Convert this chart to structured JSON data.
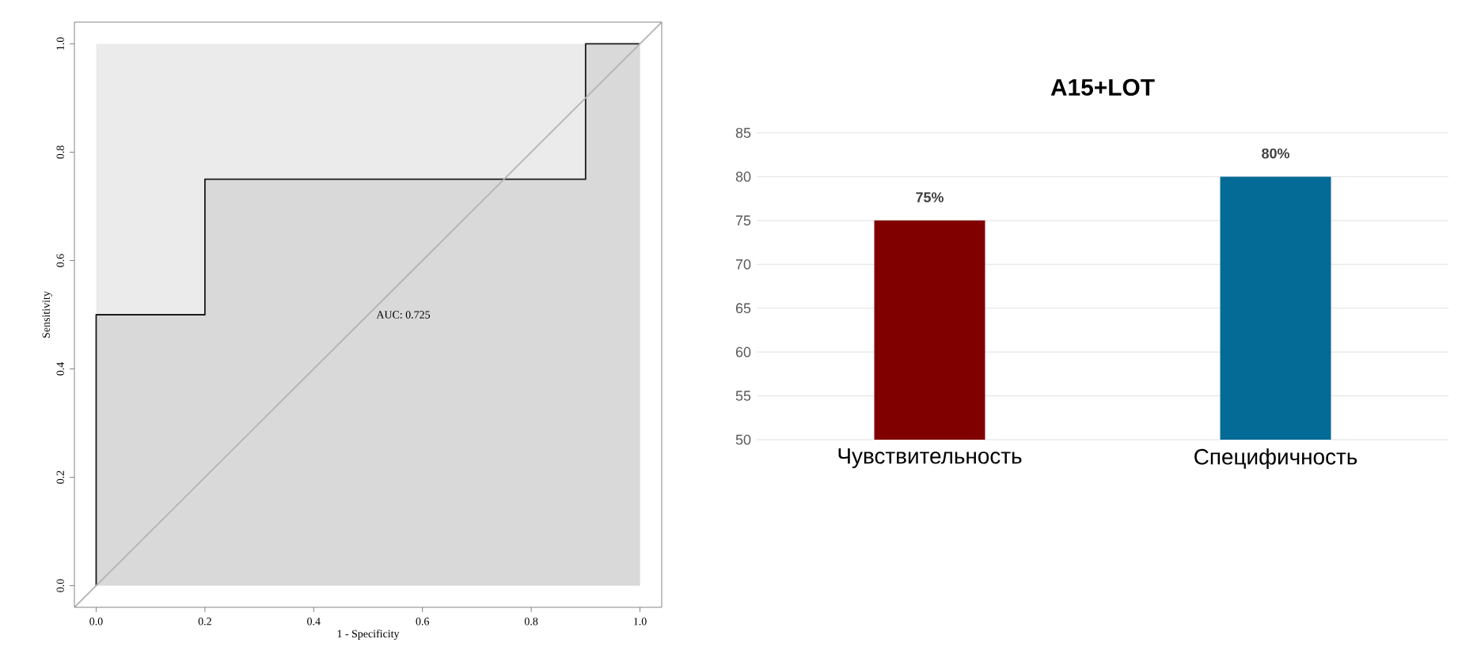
{
  "chart_data": [
    {
      "type": "line",
      "xlabel": "1 - Specificity",
      "ylabel": "Sensitivity",
      "annotations": [
        "AUC: 0.725"
      ],
      "xlim": [
        -0.04,
        1.04
      ],
      "ylim": [
        -0.04,
        1.04
      ],
      "xticks": [
        {
          "value": 0,
          "label": "0.0"
        },
        {
          "value": 0.2,
          "label": "0.2"
        },
        {
          "value": 0.4,
          "label": "0.4"
        },
        {
          "value": 0.6,
          "label": "0.6"
        },
        {
          "value": 0.8,
          "label": "0.8"
        },
        {
          "value": 1,
          "label": "1.0"
        }
      ],
      "yticks": [
        {
          "value": 0,
          "label": "0.0"
        },
        {
          "value": 0.2,
          "label": "0.2"
        },
        {
          "value": 0.4,
          "label": "0.4"
        },
        {
          "value": 0.6,
          "label": "0.6"
        },
        {
          "value": 0.8,
          "label": "0.8"
        },
        {
          "value": 1,
          "label": "1.0"
        }
      ],
      "series": [
        {
          "type": "line",
          "color": "#1a1a1a",
          "x": [
            0,
            0,
            0.2,
            0.2,
            0.9,
            0.9,
            1
          ],
          "values": [
            0,
            0.5,
            0.5,
            0.75,
            0.75,
            1,
            1
          ]
        },
        {
          "type": "line",
          "color": "#b3b3b3",
          "x": [
            -0.04,
            1.04
          ],
          "values": [
            -0.04,
            1.04
          ]
        }
      ]
    },
    {
      "type": "bar",
      "title": "A15+LOT",
      "categories": [
        "Чувствительность",
        "Специфичность"
      ],
      "values": [
        75,
        80
      ],
      "colors": [
        "#800000",
        "#046a96"
      ],
      "value_labels": [
        "75%",
        "80%"
      ],
      "ylim": [
        50,
        85
      ],
      "yticks": [
        50,
        55,
        60,
        65,
        70,
        75,
        80,
        85
      ],
      "grid": "y"
    }
  ]
}
